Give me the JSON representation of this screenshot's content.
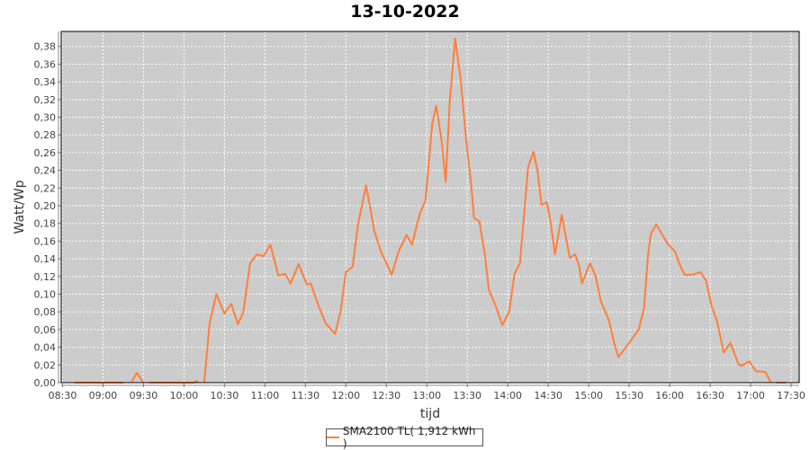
{
  "title": "13-10-2022",
  "chart_data": {
    "type": "line",
    "title": "13-10-2022",
    "xlabel": "tijd",
    "ylabel": "Watt/Wp",
    "xlim": [
      "08:29",
      "17:36"
    ],
    "ylim": [
      0,
      0.397
    ],
    "grid": true,
    "legend_placement": "bottom",
    "x_ticks": [
      "08:30",
      "09:00",
      "09:30",
      "10:00",
      "10:30",
      "11:00",
      "11:30",
      "12:00",
      "12:30",
      "13:00",
      "13:30",
      "14:00",
      "14:30",
      "15:00",
      "15:30",
      "16:00",
      "16:30",
      "17:00",
      "17:30"
    ],
    "y_ticks": [
      "0,00",
      "0,02",
      "0,04",
      "0,06",
      "0,08",
      "0,10",
      "0,12",
      "0,14",
      "0,16",
      "0,18",
      "0,20",
      "0,22",
      "0,24",
      "0,26",
      "0,28",
      "0,30",
      "0,32",
      "0,34",
      "0,36",
      "0,38"
    ],
    "series": [
      {
        "name": "SMA2100 TL( 1,912 kWh )",
        "color": "#ff7f3a",
        "segments": [
          [
            [
              "08:39",
              0
            ],
            [
              "09:15",
              0
            ]
          ],
          [
            [
              "09:21",
              0
            ],
            [
              "09:25",
              0.011
            ],
            [
              "09:30",
              0
            ]
          ],
          [
            [
              "09:34",
              0
            ],
            [
              "10:08",
              0
            ],
            [
              "10:09",
              0.002
            ],
            [
              "10:11",
              0
            ]
          ],
          [
            [
              "10:15",
              0
            ],
            [
              "10:19",
              0.067
            ],
            [
              "10:24",
              0.1
            ],
            [
              "10:30",
              0.078
            ],
            [
              "10:35",
              0.089
            ],
            [
              "10:40",
              0.066
            ],
            [
              "10:44",
              0.08
            ],
            [
              "10:49",
              0.135
            ],
            [
              "10:54",
              0.145
            ],
            [
              "10:59",
              0.143
            ],
            [
              "11:04",
              0.156
            ],
            [
              "11:10",
              0.121
            ],
            [
              "11:15",
              0.123
            ],
            [
              "11:19",
              0.112
            ],
            [
              "11:25",
              0.134
            ],
            [
              "11:31",
              0.111
            ],
            [
              "11:34",
              0.112
            ],
            [
              "11:39",
              0.09
            ],
            [
              "11:45",
              0.067
            ],
            [
              "11:52",
              0.055
            ],
            [
              "11:56",
              0.08
            ],
            [
              "12:00",
              0.125
            ],
            [
              "12:05",
              0.131
            ],
            [
              "12:09",
              0.179
            ],
            [
              "12:15",
              0.223
            ],
            [
              "12:21",
              0.172
            ],
            [
              "12:26",
              0.148
            ],
            [
              "12:34",
              0.122
            ],
            [
              "12:39",
              0.148
            ],
            [
              "12:45",
              0.167
            ],
            [
              "12:49",
              0.156
            ],
            [
              "12:55",
              0.192
            ],
            [
              "12:59",
              0.206
            ],
            [
              "13:01",
              0.24
            ],
            [
              "13:04",
              0.293
            ],
            [
              "13:07",
              0.313
            ],
            [
              "13:11",
              0.273
            ],
            [
              "13:14",
              0.227
            ],
            [
              "13:17",
              0.318
            ],
            [
              "13:21",
              0.389
            ],
            [
              "13:25",
              0.344
            ],
            [
              "13:29",
              0.277
            ],
            [
              "13:33",
              0.222
            ],
            [
              "13:35",
              0.186
            ],
            [
              "13:39",
              0.182
            ],
            [
              "13:43",
              0.145
            ],
            [
              "13:46",
              0.105
            ],
            [
              "13:51",
              0.087
            ],
            [
              "13:56",
              0.065
            ],
            [
              "14:01",
              0.08
            ],
            [
              "14:05",
              0.123
            ],
            [
              "14:09",
              0.135
            ],
            [
              "14:13",
              0.206
            ],
            [
              "14:15",
              0.243
            ],
            [
              "14:19",
              0.261
            ],
            [
              "14:22",
              0.24
            ],
            [
              "14:25",
              0.201
            ],
            [
              "14:29",
              0.204
            ],
            [
              "14:32",
              0.179
            ],
            [
              "14:35",
              0.145
            ],
            [
              "14:40",
              0.19
            ],
            [
              "14:43",
              0.165
            ],
            [
              "14:46",
              0.141
            ],
            [
              "14:50",
              0.145
            ],
            [
              "14:53",
              0.131
            ],
            [
              "14:55",
              0.112
            ],
            [
              "15:01",
              0.135
            ],
            [
              "15:05",
              0.121
            ],
            [
              "15:09",
              0.092
            ],
            [
              "15:15",
              0.07
            ],
            [
              "15:19",
              0.044
            ],
            [
              "15:22",
              0.029
            ],
            [
              "15:31",
              0.047
            ],
            [
              "15:37",
              0.06
            ],
            [
              "15:41",
              0.084
            ],
            [
              "15:44",
              0.145
            ],
            [
              "15:46",
              0.168
            ],
            [
              "15:50",
              0.179
            ],
            [
              "15:55",
              0.166
            ],
            [
              "15:59",
              0.156
            ],
            [
              "16:04",
              0.148
            ],
            [
              "16:07",
              0.135
            ],
            [
              "16:11",
              0.122
            ],
            [
              "16:17",
              0.122
            ],
            [
              "16:23",
              0.125
            ],
            [
              "16:27",
              0.115
            ],
            [
              "16:31",
              0.087
            ],
            [
              "16:35",
              0.07
            ],
            [
              "16:40",
              0.034
            ],
            [
              "16:45",
              0.045
            ],
            [
              "16:51",
              0.021
            ],
            [
              "16:53",
              0.019
            ],
            [
              "16:59",
              0.024
            ],
            [
              "17:04",
              0.013
            ],
            [
              "17:11",
              0.012
            ],
            [
              "17:15",
              0
            ]
          ],
          [
            [
              "17:19",
              0
            ],
            [
              "17:26",
              0
            ]
          ]
        ]
      }
    ]
  },
  "legend": {
    "label": "SMA2100 TL( 1,912 kWh )"
  }
}
